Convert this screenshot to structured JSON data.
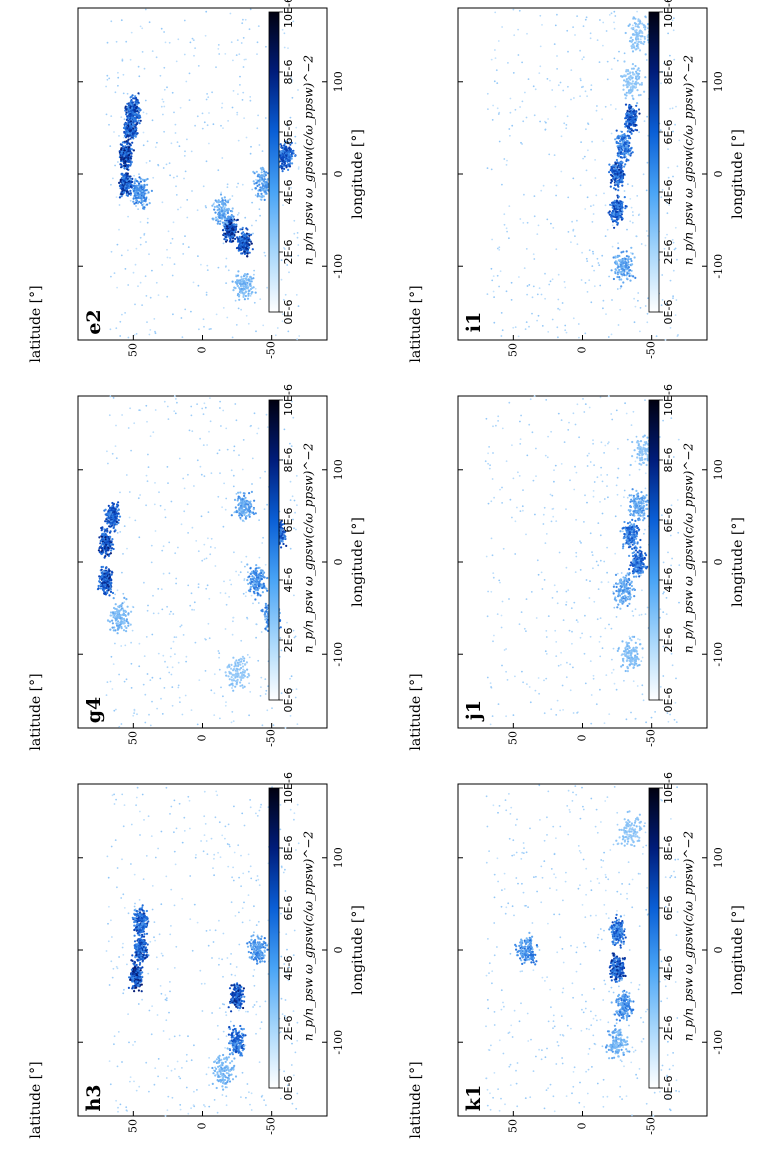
{
  "figure": {
    "colorbar": {
      "title": "n_p/n_psw ω_gpsw(c/ω_ppsw)^−2",
      "tick_labels": [
        "10E-6",
        "8E-6",
        "6E-6",
        "4E-6",
        "2E-6",
        "0E-6"
      ],
      "colors": [
        "#000010",
        "#001c7a",
        "#0a5fd6",
        "#49a4f6",
        "#a6d6fb",
        "#ffffff"
      ]
    },
    "axes": {
      "xlabel": "longitude [°]",
      "ylabel": "latitude [°]",
      "x_ticks": [
        "-100",
        "0",
        "100"
      ],
      "y_ticks": [
        "50",
        "0",
        "-50"
      ]
    }
  },
  "chart_data": [
    {
      "type": "scatter",
      "panel": "e2",
      "xlim": [
        -180,
        180
      ],
      "ylim": [
        -90,
        90
      ],
      "xlabel": "longitude [°]",
      "ylabel": "latitude [°]",
      "features": [
        {
          "x": -10,
          "y": 55,
          "intensity": 0.9
        },
        {
          "x": 20,
          "y": 55,
          "intensity": 0.95
        },
        {
          "x": 50,
          "y": 52,
          "intensity": 0.9
        },
        {
          "x": 70,
          "y": 50,
          "intensity": 0.85
        },
        {
          "x": -20,
          "y": 45,
          "intensity": 0.6
        },
        {
          "x": -60,
          "y": -20,
          "intensity": 0.95
        },
        {
          "x": -75,
          "y": -30,
          "intensity": 0.9
        },
        {
          "x": -40,
          "y": -15,
          "intensity": 0.5
        },
        {
          "x": 20,
          "y": -60,
          "intensity": 0.8
        },
        {
          "x": -10,
          "y": -45,
          "intensity": 0.5
        },
        {
          "x": -120,
          "y": -30,
          "intensity": 0.4
        }
      ]
    },
    {
      "type": "scatter",
      "panel": "g4",
      "xlim": [
        -180,
        180
      ],
      "ylim": [
        -90,
        90
      ],
      "xlabel": "longitude [°]",
      "ylabel": "latitude [°]",
      "features": [
        {
          "x": -20,
          "y": 70,
          "intensity": 0.9
        },
        {
          "x": 20,
          "y": 70,
          "intensity": 0.95
        },
        {
          "x": 50,
          "y": 65,
          "intensity": 0.85
        },
        {
          "x": -60,
          "y": 60,
          "intensity": 0.4
        },
        {
          "x": 30,
          "y": -55,
          "intensity": 0.85
        },
        {
          "x": -20,
          "y": -40,
          "intensity": 0.6
        },
        {
          "x": -60,
          "y": -50,
          "intensity": 0.6
        },
        {
          "x": 60,
          "y": -30,
          "intensity": 0.5
        },
        {
          "x": -120,
          "y": -25,
          "intensity": 0.3
        }
      ]
    },
    {
      "type": "scatter",
      "panel": "h3",
      "xlim": [
        -180,
        180
      ],
      "ylim": [
        -90,
        90
      ],
      "xlabel": "longitude [°]",
      "ylabel": "latitude [°]",
      "features": [
        {
          "x": -30,
          "y": 48,
          "intensity": 0.95
        },
        {
          "x": 0,
          "y": 45,
          "intensity": 0.85
        },
        {
          "x": 30,
          "y": 45,
          "intensity": 0.8
        },
        {
          "x": -50,
          "y": -25,
          "intensity": 0.9
        },
        {
          "x": -100,
          "y": -25,
          "intensity": 0.75
        },
        {
          "x": 0,
          "y": -40,
          "intensity": 0.6
        },
        {
          "x": -130,
          "y": -15,
          "intensity": 0.4
        }
      ]
    },
    {
      "type": "scatter",
      "panel": "i1",
      "xlim": [
        -180,
        180
      ],
      "ylim": [
        -90,
        90
      ],
      "xlabel": "longitude [°]",
      "ylabel": "latitude [°]",
      "features": [
        {
          "x": -40,
          "y": -25,
          "intensity": 0.8
        },
        {
          "x": 0,
          "y": -25,
          "intensity": 0.85
        },
        {
          "x": 30,
          "y": -30,
          "intensity": 0.7
        },
        {
          "x": 60,
          "y": -35,
          "intensity": 0.85
        },
        {
          "x": -100,
          "y": -30,
          "intensity": 0.5
        },
        {
          "x": 100,
          "y": -35,
          "intensity": 0.3
        },
        {
          "x": 150,
          "y": -40,
          "intensity": 0.3
        }
      ]
    },
    {
      "type": "scatter",
      "panel": "j1",
      "xlim": [
        -180,
        180
      ],
      "ylim": [
        -90,
        90
      ],
      "xlabel": "longitude [°]",
      "ylabel": "latitude [°]",
      "features": [
        {
          "x": 0,
          "y": -40,
          "intensity": 0.75
        },
        {
          "x": 30,
          "y": -35,
          "intensity": 0.7
        },
        {
          "x": -30,
          "y": -30,
          "intensity": 0.5
        },
        {
          "x": 60,
          "y": -40,
          "intensity": 0.5
        },
        {
          "x": -100,
          "y": -35,
          "intensity": 0.35
        },
        {
          "x": 120,
          "y": -45,
          "intensity": 0.3
        }
      ]
    },
    {
      "type": "scatter",
      "panel": "k1",
      "xlim": [
        -180,
        180
      ],
      "ylim": [
        -90,
        90
      ],
      "xlabel": "longitude [°]",
      "ylabel": "latitude [°]",
      "features": [
        {
          "x": -20,
          "y": -25,
          "intensity": 0.85
        },
        {
          "x": 20,
          "y": -25,
          "intensity": 0.75
        },
        {
          "x": -60,
          "y": -30,
          "intensity": 0.6
        },
        {
          "x": -100,
          "y": -25,
          "intensity": 0.45
        },
        {
          "x": 0,
          "y": 40,
          "intensity": 0.6
        },
        {
          "x": 130,
          "y": -35,
          "intensity": 0.3
        }
      ]
    }
  ]
}
